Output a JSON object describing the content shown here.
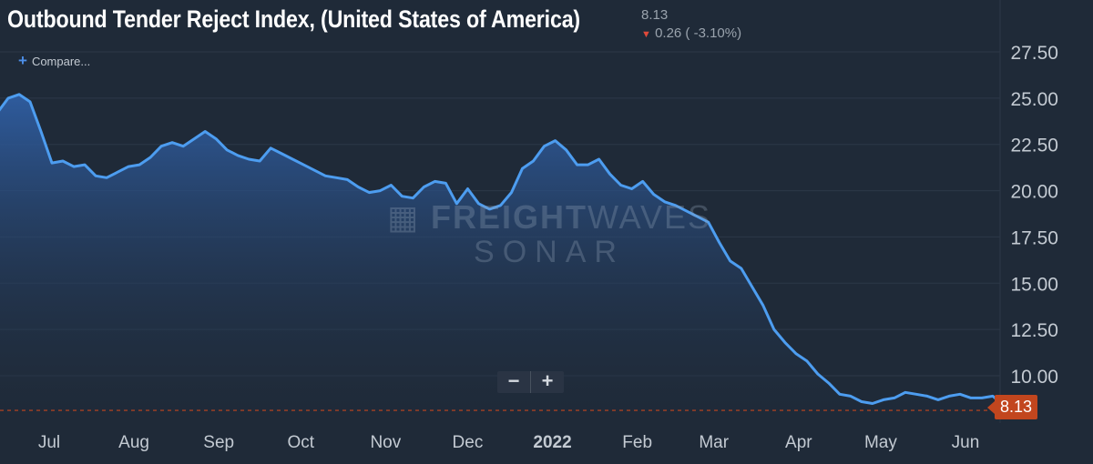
{
  "header": {
    "title": "Outbound Tender Reject Index, (United States of America)",
    "last_value": "8.13",
    "change": "0.26 ( -3.10%)",
    "compare_label": "Compare..."
  },
  "watermark": {
    "top_bold": "FREIGHT",
    "top_light": "WAVES",
    "bottom": "SONAR"
  },
  "zoom": {
    "minus": "−",
    "plus": "+"
  },
  "value_tag": "8.13",
  "colors": {
    "background": "#1f2a38",
    "line": "#4d9df0",
    "tag": "#c2461e",
    "reference": "#c2461e"
  },
  "chart_data": {
    "type": "area",
    "title": "Outbound Tender Reject Index, (United States of America)",
    "xlabel": "",
    "ylabel": "",
    "ylim": [
      8.0,
      29.0
    ],
    "yticks": [
      "10.00",
      "12.50",
      "15.00",
      "17.50",
      "20.00",
      "22.50",
      "25.00",
      "27.50"
    ],
    "grid": true,
    "xticks": [
      {
        "label": "Jul",
        "date": "2021-07-01",
        "bold": false
      },
      {
        "label": "Aug",
        "date": "2021-08-01",
        "bold": false
      },
      {
        "label": "Sep",
        "date": "2021-09-01",
        "bold": false
      },
      {
        "label": "Oct",
        "date": "2021-10-01",
        "bold": false
      },
      {
        "label": "Nov",
        "date": "2021-11-01",
        "bold": false
      },
      {
        "label": "Dec",
        "date": "2021-12-01",
        "bold": false
      },
      {
        "label": "2022",
        "date": "2022-01-01",
        "bold": true
      },
      {
        "label": "Feb",
        "date": "2022-02-01",
        "bold": false
      },
      {
        "label": "Mar",
        "date": "2022-03-01",
        "bold": false
      },
      {
        "label": "Apr",
        "date": "2022-04-01",
        "bold": false
      },
      {
        "label": "May",
        "date": "2022-05-01",
        "bold": false
      },
      {
        "label": "Jun",
        "date": "2022-06-01",
        "bold": false
      }
    ],
    "series": [
      {
        "name": "Outbound Tender Reject Index",
        "x": [
          "2021-06-04",
          "2021-06-08",
          "2021-06-12",
          "2021-06-16",
          "2021-06-20",
          "2021-06-24",
          "2021-06-28",
          "2021-07-02",
          "2021-07-06",
          "2021-07-10",
          "2021-07-14",
          "2021-07-18",
          "2021-07-22",
          "2021-07-26",
          "2021-07-30",
          "2021-08-03",
          "2021-08-07",
          "2021-08-11",
          "2021-08-15",
          "2021-08-19",
          "2021-08-23",
          "2021-08-27",
          "2021-08-31",
          "2021-09-04",
          "2021-09-08",
          "2021-09-12",
          "2021-09-16",
          "2021-09-20",
          "2021-09-24",
          "2021-09-28",
          "2021-10-02",
          "2021-10-06",
          "2021-10-10",
          "2021-10-14",
          "2021-10-18",
          "2021-10-22",
          "2021-10-26",
          "2021-10-30",
          "2021-11-03",
          "2021-11-07",
          "2021-11-11",
          "2021-11-15",
          "2021-11-19",
          "2021-11-23",
          "2021-11-27",
          "2021-12-01",
          "2021-12-05",
          "2021-12-09",
          "2021-12-13",
          "2021-12-17",
          "2021-12-21",
          "2021-12-25",
          "2021-12-29",
          "2022-01-02",
          "2022-01-06",
          "2022-01-10",
          "2022-01-14",
          "2022-01-18",
          "2022-01-22",
          "2022-01-26",
          "2022-01-30",
          "2022-02-03",
          "2022-02-07",
          "2022-02-11",
          "2022-02-15",
          "2022-02-19",
          "2022-02-23",
          "2022-02-27",
          "2022-03-03",
          "2022-03-07",
          "2022-03-11",
          "2022-03-15",
          "2022-03-19",
          "2022-03-23",
          "2022-03-27",
          "2022-03-31",
          "2022-04-04",
          "2022-04-08",
          "2022-04-12",
          "2022-04-16",
          "2022-04-20",
          "2022-04-24",
          "2022-04-28",
          "2022-05-02",
          "2022-05-06",
          "2022-05-10",
          "2022-05-14",
          "2022-05-18",
          "2022-05-22",
          "2022-05-26",
          "2022-05-30",
          "2022-06-03",
          "2022-06-07",
          "2022-06-11",
          "2022-06-15"
        ],
        "values": [
          22.5,
          23.3,
          24.2,
          25.0,
          25.2,
          24.8,
          23.2,
          21.5,
          21.6,
          21.3,
          21.4,
          20.8,
          20.7,
          21.0,
          21.3,
          21.4,
          21.8,
          22.4,
          22.6,
          22.4,
          22.8,
          23.2,
          22.8,
          22.2,
          21.9,
          21.7,
          21.6,
          22.3,
          22.0,
          21.7,
          21.4,
          21.1,
          20.8,
          20.7,
          20.6,
          20.2,
          19.9,
          20.0,
          20.3,
          19.7,
          19.6,
          20.2,
          20.5,
          20.4,
          19.3,
          20.1,
          19.3,
          19.0,
          19.2,
          19.9,
          21.2,
          21.6,
          22.4,
          22.7,
          22.2,
          21.4,
          21.4,
          21.7,
          20.9,
          20.3,
          20.1,
          20.5,
          19.8,
          19.4,
          19.2,
          18.9,
          18.6,
          18.3,
          17.2,
          16.2,
          15.8,
          14.8,
          13.8,
          12.5,
          11.8,
          11.2,
          10.8,
          10.1,
          9.6,
          9.0,
          8.9,
          8.6,
          8.5,
          8.7,
          8.8,
          9.1,
          9.0,
          8.9,
          8.7,
          8.9,
          9.0,
          8.8,
          8.8,
          8.9,
          8.4
        ]
      }
    ],
    "reference_line": 8.13
  }
}
